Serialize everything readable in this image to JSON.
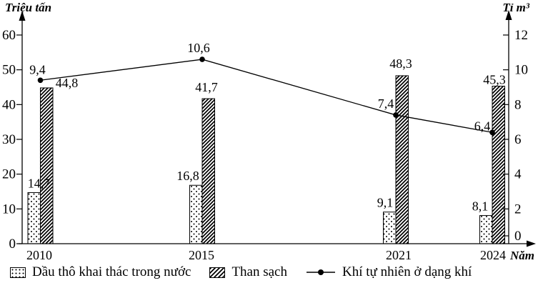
{
  "chart_data": {
    "type": "bar",
    "title": "",
    "categories": [
      "2010",
      "2015",
      "2021",
      "2024"
    ],
    "series": [
      {
        "name": "Dầu thô khai thác trong nước",
        "render": "bar",
        "axis": "left",
        "pattern": "dots",
        "values": [
          14.7,
          16.8,
          9.1,
          8.1
        ],
        "labels": [
          "14,7",
          "16,8",
          "9,1",
          "8,1"
        ]
      },
      {
        "name": "Than sạch",
        "render": "bar",
        "axis": "left",
        "pattern": "hatch",
        "values": [
          44.8,
          41.7,
          48.3,
          45.3
        ],
        "labels": [
          "44,8",
          "41,7",
          "48,3",
          "45,3"
        ]
      },
      {
        "name": "Khí tự nhiên ở dạng khí",
        "render": "line",
        "axis": "right",
        "values": [
          9.4,
          10.6,
          7.4,
          6.4
        ],
        "labels": [
          "9,4",
          "10,6",
          "7,4",
          "6,4"
        ]
      }
    ],
    "left_axis": {
      "title": "Triệu tấn",
      "ticks": [
        0,
        10,
        20,
        30,
        40,
        50,
        60
      ],
      "range": [
        0,
        60
      ]
    },
    "right_axis": {
      "title": "Tỉ m³",
      "ticks": [
        0,
        2,
        4,
        6,
        8,
        10,
        12
      ],
      "range": [
        0,
        12
      ]
    },
    "x_axis": {
      "title": "Năm"
    },
    "grid": false,
    "legend_position": "bottom",
    "colors": {
      "ink": "#000000",
      "background": "#ffffff"
    }
  }
}
